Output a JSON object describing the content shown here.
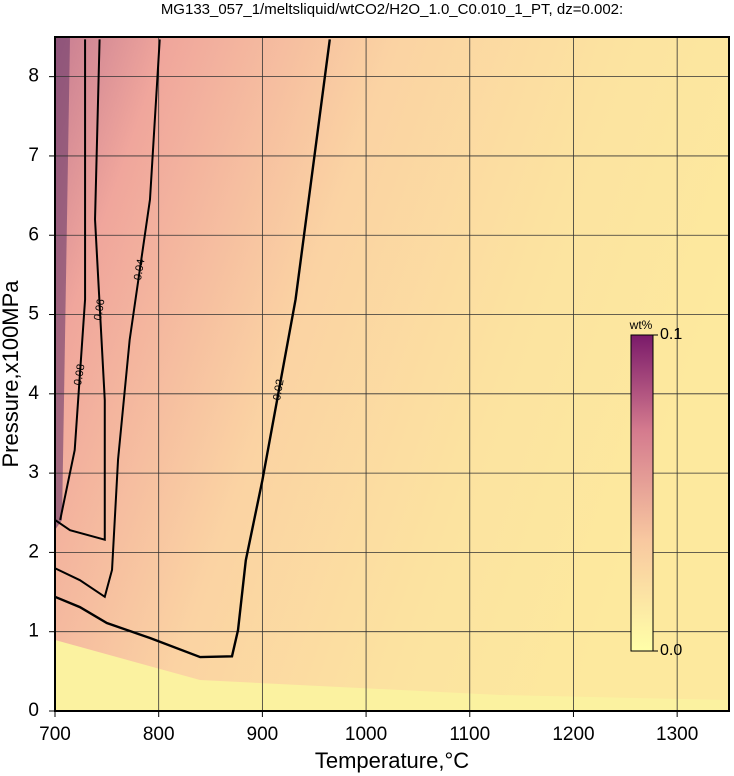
{
  "chart_data": {
    "type": "contour",
    "title": "MG133_057_1/meltsliquid/wtCO2/H2O_1.0_C0.010_1_PT, dz=0.002:",
    "x_label": "Temperature,°C",
    "y_label": "Pressure,x100MPa",
    "xlim": [
      700,
      1350
    ],
    "ylim": [
      0,
      8.5
    ],
    "xticks": [
      700,
      800,
      900,
      1000,
      1100,
      1200,
      1300
    ],
    "yticks": [
      0,
      1,
      2,
      3,
      4,
      5,
      6,
      7,
      8
    ],
    "grid": true,
    "colorbar": {
      "label": "wt%",
      "lim": [
        0,
        0.1
      ],
      "ticks": [
        {
          "value": 0,
          "label": "0.0"
        },
        0.1
      ]
    },
    "contours": [
      {
        "level": 0.02,
        "x": [
          965,
          932,
          900,
          884,
          876.5,
          870.7,
          840,
          791.6,
          750,
          724,
          700
        ],
        "y": [
          8.47,
          5.19,
          2.91,
          1.9,
          1.02,
          0.69,
          0.68,
          0.92,
          1.11,
          1.31,
          1.44
        ]
      },
      {
        "level": 0.04,
        "x": [
          801,
          791.6,
          772,
          760.8,
          755,
          748,
          724,
          700
        ],
        "y": [
          8.47,
          6.45,
          4.68,
          3.17,
          1.78,
          1.44,
          1.65,
          1.8
        ]
      },
      {
        "level": 0.06,
        "x": [
          743,
          738.6,
          748,
          748,
          714.5,
          700
        ],
        "y": [
          8.47,
          6.2,
          3.92,
          2.16,
          2.28,
          2.41
        ]
      },
      {
        "level": 0.08,
        "x": [
          729,
          729,
          719,
          705
        ],
        "y": [
          8.47,
          5.19,
          3.29,
          2.41
        ]
      }
    ]
  }
}
